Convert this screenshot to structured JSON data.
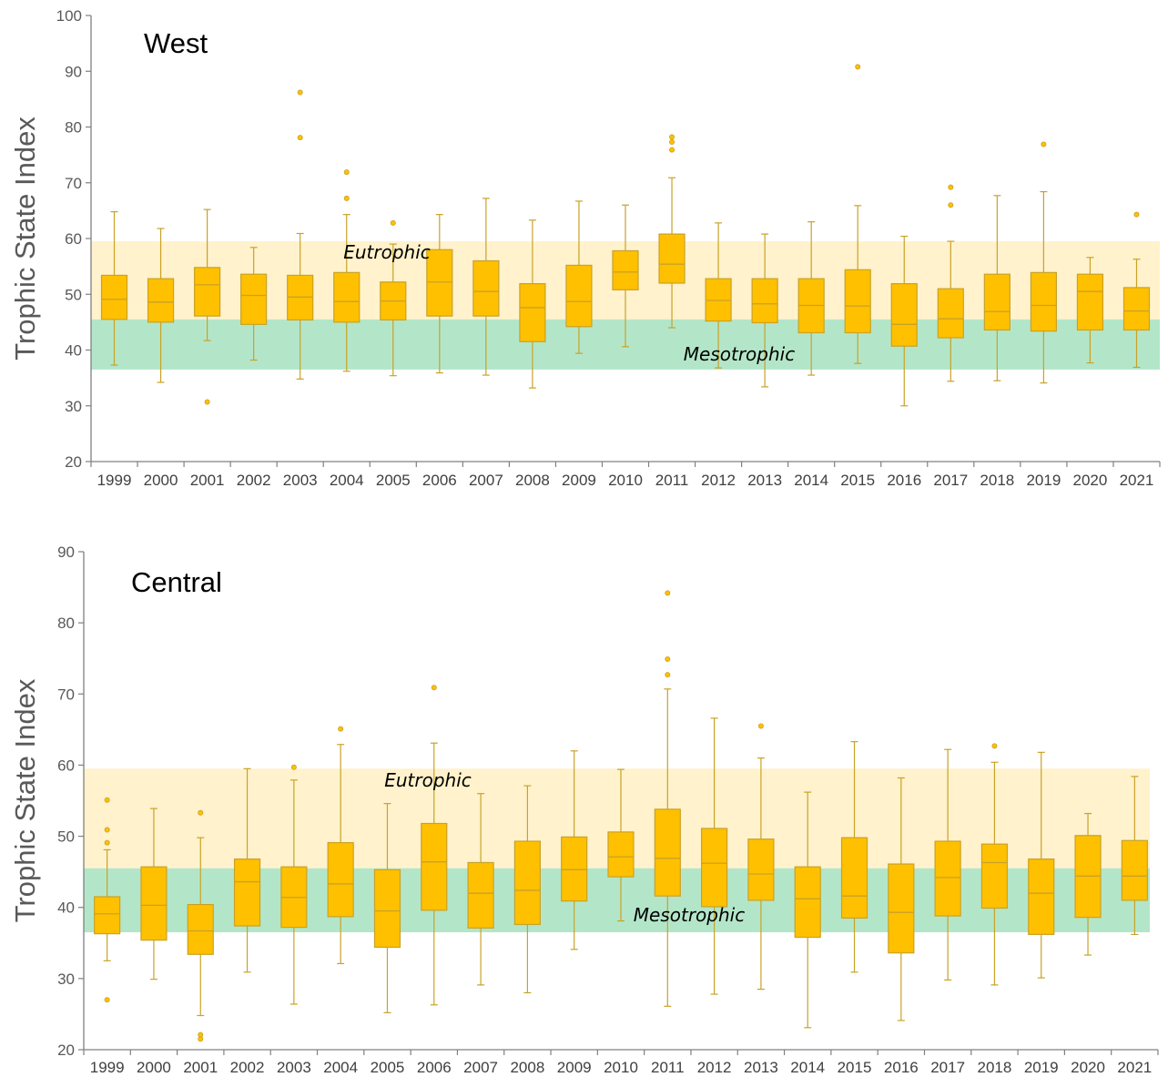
{
  "colors": {
    "box_fill": "#ffc000",
    "box_stroke": "#c9a227",
    "eutrophic_band": "#fff2cc",
    "mesotrophic_band": "#b3e6c9",
    "axis": "#808080"
  },
  "chart_data": [
    {
      "type": "box",
      "title": "West",
      "ylabel": "Trophic State Index",
      "ylim": [
        20,
        100
      ],
      "yticks": [
        20,
        30,
        40,
        50,
        60,
        70,
        80,
        90,
        100
      ],
      "grid": false,
      "bands": [
        {
          "label": "Eutrophic",
          "from": 45.5,
          "to": 59.5
        },
        {
          "label": "Mesotrophic",
          "from": 36.5,
          "to": 45.5
        }
      ],
      "categories": [
        "1999",
        "2000",
        "2001",
        "2002",
        "2003",
        "2004",
        "2005",
        "2006",
        "2007",
        "2008",
        "2009",
        "2010",
        "2011",
        "2012",
        "2013",
        "2014",
        "2015",
        "2016",
        "2017",
        "2018",
        "2019",
        "2020",
        "2021"
      ],
      "boxes": [
        {
          "min": 37.3,
          "q1": 45.5,
          "median": 49.1,
          "q3": 53.4,
          "max": 64.8,
          "outliers": []
        },
        {
          "min": 34.2,
          "q1": 45.0,
          "median": 48.6,
          "q3": 52.8,
          "max": 61.8,
          "outliers": []
        },
        {
          "min": 41.7,
          "q1": 46.1,
          "median": 51.7,
          "q3": 54.8,
          "max": 65.2,
          "outliers": [
            30.7
          ]
        },
        {
          "min": 38.2,
          "q1": 44.6,
          "median": 49.8,
          "q3": 53.6,
          "max": 58.4,
          "outliers": []
        },
        {
          "min": 34.8,
          "q1": 45.4,
          "median": 49.5,
          "q3": 53.4,
          "max": 60.9,
          "outliers": [
            78.1,
            86.2
          ]
        },
        {
          "min": 36.2,
          "q1": 45.0,
          "median": 48.7,
          "q3": 53.9,
          "max": 64.3,
          "outliers": [
            67.2,
            71.9
          ]
        },
        {
          "min": 35.4,
          "q1": 45.4,
          "median": 48.8,
          "q3": 52.2,
          "max": 59.0,
          "outliers": [
            62.8
          ]
        },
        {
          "min": 35.9,
          "q1": 46.1,
          "median": 52.2,
          "q3": 58.0,
          "max": 64.3,
          "outliers": []
        },
        {
          "min": 35.5,
          "q1": 46.1,
          "median": 50.5,
          "q3": 56.0,
          "max": 67.2,
          "outliers": []
        },
        {
          "min": 33.2,
          "q1": 41.5,
          "median": 47.6,
          "q3": 51.9,
          "max": 63.3,
          "outliers": []
        },
        {
          "min": 39.4,
          "q1": 44.2,
          "median": 48.7,
          "q3": 55.2,
          "max": 66.7,
          "outliers": []
        },
        {
          "min": 40.6,
          "q1": 50.8,
          "median": 54.0,
          "q3": 57.8,
          "max": 66.0,
          "outliers": []
        },
        {
          "min": 44.0,
          "q1": 52.0,
          "median": 55.4,
          "q3": 60.8,
          "max": 70.9,
          "outliers": [
            75.9,
            77.3,
            78.2
          ]
        },
        {
          "min": 36.8,
          "q1": 45.2,
          "median": 48.9,
          "q3": 52.8,
          "max": 62.8,
          "outliers": []
        },
        {
          "min": 33.4,
          "q1": 44.9,
          "median": 48.3,
          "q3": 52.8,
          "max": 60.8,
          "outliers": []
        },
        {
          "min": 35.5,
          "q1": 43.1,
          "median": 48.0,
          "q3": 52.8,
          "max": 63.0,
          "outliers": []
        },
        {
          "min": 37.6,
          "q1": 43.1,
          "median": 47.9,
          "q3": 54.4,
          "max": 65.9,
          "outliers": [
            90.8
          ]
        },
        {
          "min": 30.0,
          "q1": 40.7,
          "median": 44.6,
          "q3": 51.9,
          "max": 60.4,
          "outliers": []
        },
        {
          "min": 34.4,
          "q1": 42.2,
          "median": 45.6,
          "q3": 51.0,
          "max": 59.5,
          "outliers": [
            66.0,
            69.2
          ]
        },
        {
          "min": 34.5,
          "q1": 43.6,
          "median": 46.9,
          "q3": 53.6,
          "max": 67.7,
          "outliers": []
        },
        {
          "min": 34.1,
          "q1": 43.4,
          "median": 48.0,
          "q3": 53.9,
          "max": 68.4,
          "outliers": [
            76.9
          ]
        },
        {
          "min": 37.7,
          "q1": 43.6,
          "median": 50.5,
          "q3": 53.6,
          "max": 56.6,
          "outliers": []
        },
        {
          "min": 36.9,
          "q1": 43.6,
          "median": 47.0,
          "q3": 51.2,
          "max": 56.3,
          "outliers": [
            64.3
          ]
        }
      ]
    },
    {
      "type": "box",
      "title": "Central",
      "ylabel": "Trophic State Index",
      "ylim": [
        20,
        90
      ],
      "yticks": [
        20,
        30,
        40,
        50,
        60,
        70,
        80,
        90
      ],
      "grid": false,
      "bands": [
        {
          "label": "Eutrophic",
          "from": 45.5,
          "to": 59.5
        },
        {
          "label": "Mesotrophic",
          "from": 36.5,
          "to": 45.5
        }
      ],
      "categories": [
        "1999",
        "2000",
        "2001",
        "2002",
        "2003",
        "2004",
        "2005",
        "2006",
        "2007",
        "2008",
        "2009",
        "2010",
        "2011",
        "2012",
        "2013",
        "2014",
        "2015",
        "2016",
        "2017",
        "2018",
        "2019",
        "2020",
        "2021"
      ],
      "boxes": [
        {
          "min": 32.5,
          "q1": 36.3,
          "median": 39.1,
          "q3": 41.5,
          "max": 48.1,
          "outliers": [
            27.0,
            49.1,
            50.9,
            55.1
          ]
        },
        {
          "min": 29.9,
          "q1": 35.4,
          "median": 40.3,
          "q3": 45.7,
          "max": 53.9,
          "outliers": []
        },
        {
          "min": 24.8,
          "q1": 33.4,
          "median": 36.7,
          "q3": 40.4,
          "max": 49.8,
          "outliers": [
            21.5,
            22.1,
            53.3
          ]
        },
        {
          "min": 30.9,
          "q1": 37.4,
          "median": 43.6,
          "q3": 46.8,
          "max": 59.5,
          "outliers": []
        },
        {
          "min": 26.4,
          "q1": 37.2,
          "median": 41.4,
          "q3": 45.7,
          "max": 57.9,
          "outliers": [
            59.7
          ]
        },
        {
          "min": 32.1,
          "q1": 38.7,
          "median": 43.3,
          "q3": 49.1,
          "max": 62.9,
          "outliers": [
            65.1
          ]
        },
        {
          "min": 25.2,
          "q1": 34.4,
          "median": 39.5,
          "q3": 45.3,
          "max": 54.6,
          "outliers": []
        },
        {
          "min": 26.3,
          "q1": 39.6,
          "median": 46.4,
          "q3": 51.8,
          "max": 63.1,
          "outliers": [
            70.9
          ]
        },
        {
          "min": 29.1,
          "q1": 37.1,
          "median": 42.0,
          "q3": 46.3,
          "max": 56.0,
          "outliers": []
        },
        {
          "min": 28.0,
          "q1": 37.6,
          "median": 42.4,
          "q3": 49.3,
          "max": 57.1,
          "outliers": []
        },
        {
          "min": 34.1,
          "q1": 40.9,
          "median": 45.3,
          "q3": 49.9,
          "max": 62.0,
          "outliers": []
        },
        {
          "min": 38.1,
          "q1": 44.3,
          "median": 47.1,
          "q3": 50.6,
          "max": 59.4,
          "outliers": []
        },
        {
          "min": 26.1,
          "q1": 41.6,
          "median": 46.9,
          "q3": 53.8,
          "max": 70.7,
          "outliers": [
            72.7,
            74.9,
            84.2
          ]
        },
        {
          "min": 27.8,
          "q1": 40.1,
          "median": 46.2,
          "q3": 51.1,
          "max": 66.6,
          "outliers": []
        },
        {
          "min": 28.5,
          "q1": 41.0,
          "median": 44.7,
          "q3": 49.6,
          "max": 61.0,
          "outliers": [
            65.5
          ]
        },
        {
          "min": 23.1,
          "q1": 35.8,
          "median": 41.2,
          "q3": 45.7,
          "max": 56.2,
          "outliers": []
        },
        {
          "min": 30.9,
          "q1": 38.5,
          "median": 41.6,
          "q3": 49.8,
          "max": 63.3,
          "outliers": []
        },
        {
          "min": 24.1,
          "q1": 33.6,
          "median": 39.3,
          "q3": 46.1,
          "max": 58.2,
          "outliers": []
        },
        {
          "min": 29.8,
          "q1": 38.8,
          "median": 44.2,
          "q3": 49.3,
          "max": 62.2,
          "outliers": []
        },
        {
          "min": 29.1,
          "q1": 39.9,
          "median": 46.3,
          "q3": 48.9,
          "max": 60.4,
          "outliers": [
            62.7
          ]
        },
        {
          "min": 30.1,
          "q1": 36.2,
          "median": 42.0,
          "q3": 46.8,
          "max": 61.8,
          "outliers": []
        },
        {
          "min": 33.3,
          "q1": 38.6,
          "median": 44.4,
          "q3": 50.1,
          "max": 53.2,
          "outliers": []
        },
        {
          "min": 36.2,
          "q1": 41.0,
          "median": 44.4,
          "q3": 49.4,
          "max": 58.4,
          "outliers": []
        }
      ]
    }
  ]
}
